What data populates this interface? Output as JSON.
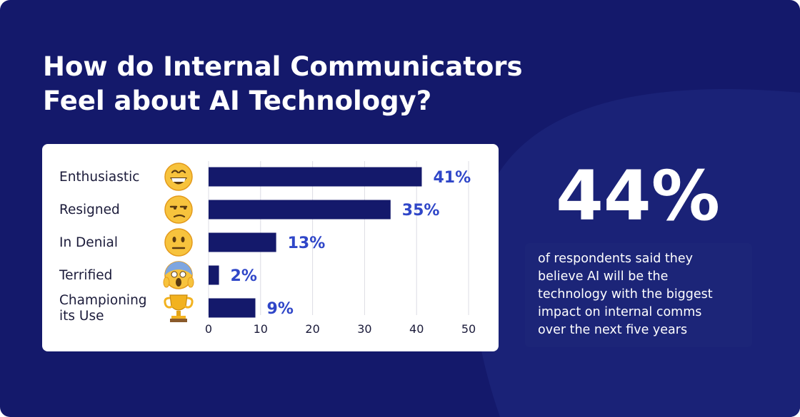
{
  "header": {
    "title_lines": [
      "How do Internal Communicators",
      "Feel about AI Technology?"
    ]
  },
  "chart_data": {
    "type": "bar",
    "orientation": "horizontal",
    "categories": [
      {
        "lines": [
          "Enthusiastic"
        ],
        "icon": "grinning-face-emoji",
        "value": 41,
        "label": "41%"
      },
      {
        "lines": [
          "Resigned"
        ],
        "icon": "unamused-face-emoji",
        "value": 35,
        "label": "35%"
      },
      {
        "lines": [
          "In Denial"
        ],
        "icon": "neutral-face-emoji",
        "value": 13,
        "label": "13%"
      },
      {
        "lines": [
          "Terrified"
        ],
        "icon": "screaming-face-emoji",
        "value": 2,
        "label": "2%"
      },
      {
        "lines": [
          "Championing",
          "its Use"
        ],
        "icon": "trophy-emoji",
        "value": 9,
        "label": "9%"
      }
    ],
    "xlim": [
      0,
      50
    ],
    "xticks": [
      0,
      10,
      20,
      30,
      40,
      50
    ],
    "grid": true,
    "colors": {
      "bar": "#14196b",
      "value_label": "#2f46c8"
    }
  },
  "highlight": {
    "value": "44%",
    "description_lines": [
      "of respondents said they",
      "believe AI will be the",
      "technology with the biggest",
      "impact on internal comms",
      "over the next five years"
    ]
  },
  "colors": {
    "background": "#14196b",
    "background_wave": "#1a2277",
    "note_box": "#1c2578"
  }
}
